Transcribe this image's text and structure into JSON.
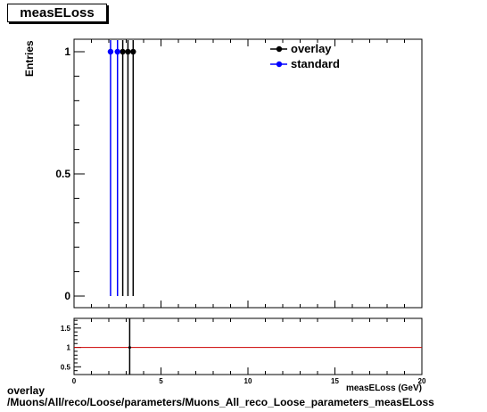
{
  "title": "measELoss",
  "chart_data": {
    "type": "scatter",
    "ylabel": "Entries",
    "xlabel": "measELoss (GeV)",
    "main": {
      "ylim": [
        0,
        1.05
      ],
      "yticks": [
        0,
        0.5,
        1
      ],
      "ytick_labels": [
        "0",
        "0.5",
        "1"
      ],
      "series": [
        {
          "name": "overlay",
          "color": "#000000",
          "x": [
            2.8,
            3.1,
            3.4
          ],
          "y": [
            1,
            1,
            1
          ]
        },
        {
          "name": "standard",
          "color": "#0000ff",
          "x": [
            2.1,
            2.5
          ],
          "y": [
            1,
            1
          ]
        }
      ]
    },
    "ratio": {
      "xlim": [
        0,
        20
      ],
      "ylim": [
        0.3,
        1.75
      ],
      "xticks": [
        0,
        5,
        10,
        15,
        20
      ],
      "xtick_labels": [
        "0",
        "5",
        "10",
        "15",
        "20"
      ],
      "yticks": [
        0.5,
        1,
        1.5
      ],
      "ytick_labels": [
        "0.5",
        "1",
        "1.5"
      ],
      "reference_line": 1,
      "reference_color": "#cc0000",
      "points": [
        {
          "x": 3.2,
          "y": 1
        }
      ]
    }
  },
  "footer": {
    "line1": "overlay",
    "line2": "/Muons/All/reco/Loose/parameters/Muons_All_reco_Loose_parameters_measELoss"
  }
}
